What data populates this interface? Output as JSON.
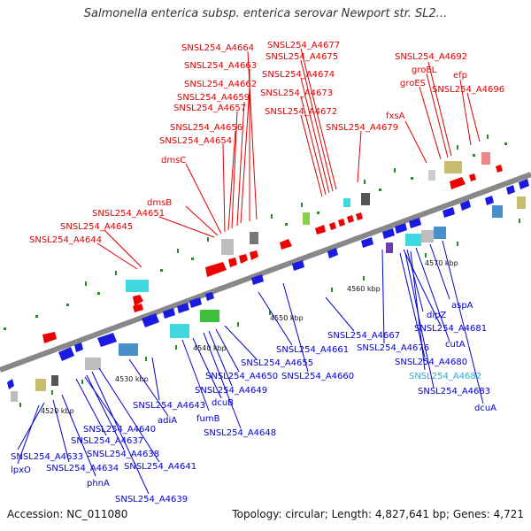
{
  "title": "Salmonella enterica subsp. enterica serovar Newport str. SL2...",
  "footer": {
    "accession": "Accession: NC_011080",
    "topology": "Topology: circular; Length: 4,827,641 bp; Genes: 4,721"
  },
  "colors": {
    "forward_label": "#dd0000",
    "reverse_label": "#0000cc",
    "highlight_label": "#33aacc"
  },
  "scale_labels": [
    "4520 kbp",
    "4530 kbp",
    "4540 kbp",
    "4550 kbp",
    "4560 kbp",
    "4570 kbp"
  ],
  "forward_labels": [
    "SNSL254_A4664",
    "SNSL254_A4663",
    "SNSL254_A4662",
    "SNSL254_A4659",
    "SNSL254_A4657",
    "SNSL254_A4656",
    "SNSL254_A4654",
    "dmsC",
    "dmsB",
    "SNSL254_A4651",
    "SNSL254_A4645",
    "SNSL254_A4644",
    "SNSL254_A4677",
    "SNSL254_A4675",
    "SNSL254_A4674",
    "SNSL254_A4673",
    "SNSL254_A4672",
    "SNSL254_A4679",
    "fxsA",
    "SNSL254_A4692",
    "groEL",
    "groES",
    "efp",
    "SNSL254_A4696"
  ],
  "reverse_labels": [
    "SNSL254_A4633",
    "lpxO",
    "SNSL254_A4634",
    "phnA",
    "SNSL254_A4637",
    "SNSL254_A4638",
    "SNSL254_A4639",
    "SNSL254_A4640",
    "SNSL254_A4641",
    "adiA",
    "SNSL254_A4643",
    "fumB",
    "dcuB",
    "SNSL254_A4648",
    "SNSL254_A4649",
    "SNSL254_A4650",
    "SNSL254_A4655",
    "SNSL254_A4661",
    "SNSL254_A4660",
    "SNSL254_A4667",
    "SNSL254_A4676",
    "SNSL254_A4681",
    "dipZ",
    "aspA",
    "cutA",
    "SNSL254_A4680",
    "SNSL254_A4682",
    "SNSL254_A4683",
    "dcuA"
  ]
}
